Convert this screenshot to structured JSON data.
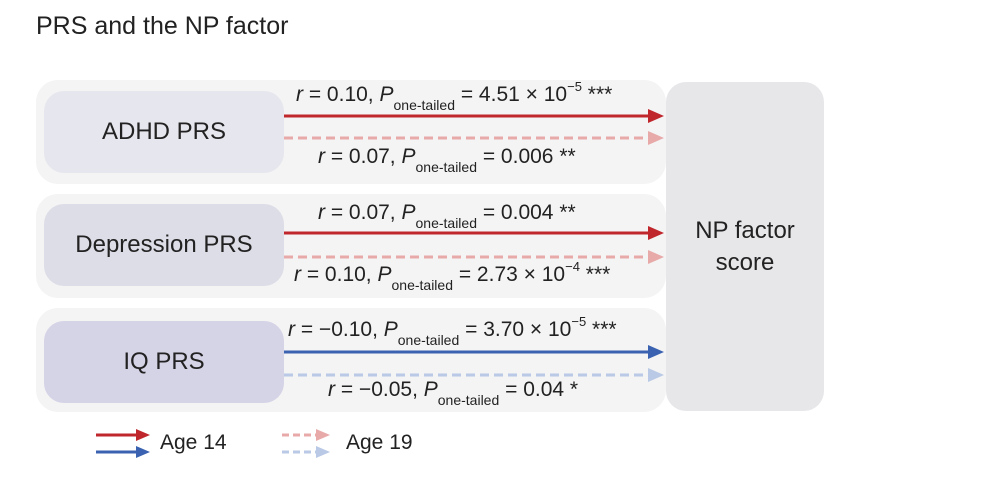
{
  "title": "PRS and the NP factor",
  "outcome": {
    "line1": "NP factor",
    "line2": "score"
  },
  "predictors": [
    {
      "label": "ADHD PRS",
      "age14": {
        "r": "r",
        "r_value": " = 0.10, ",
        "p": "P",
        "p_sub": "one-tailed",
        "p_value": " = 4.51 × 10",
        "p_exp": "−5",
        "stars": " ***"
      },
      "age19": {
        "r": "r",
        "r_value": " = 0.07, ",
        "p": "P",
        "p_sub": "one-tailed",
        "p_value": " = 0.006",
        "p_exp": "",
        "stars": " **"
      }
    },
    {
      "label": "Depression PRS",
      "age14": {
        "r": "r",
        "r_value": " = 0.07, ",
        "p": "P",
        "p_sub": "one-tailed",
        "p_value": " = 0.004",
        "p_exp": "",
        "stars": " **"
      },
      "age19": {
        "r": "r",
        "r_value": " = 0.10, ",
        "p": "P",
        "p_sub": "one-tailed",
        "p_value": " = 2.73 × 10",
        "p_exp": "−4",
        "stars": " ***"
      }
    },
    {
      "label": "IQ PRS",
      "age14": {
        "r": "r",
        "r_value": " = −0.10, ",
        "p": "P",
        "p_sub": "one-tailed",
        "p_value": " = 3.70 × 10",
        "p_exp": "−5",
        "stars": " ***"
      },
      "age19": {
        "r": "r",
        "r_value": " = −0.05, ",
        "p": "P",
        "p_sub": "one-tailed",
        "p_value": " = 0.04",
        "p_exp": "",
        "stars": " *"
      }
    }
  ],
  "legend": {
    "age14": "Age 14",
    "age19": "Age 19"
  },
  "colors": {
    "red": "#c0272d",
    "red_light": "#e8a9a9",
    "blue": "#3a62b0",
    "blue_light": "#b9c9e6",
    "adhd_box": "#e6e6ee",
    "dep_box": "#dddde8",
    "iq_box": "#d5d3e6"
  }
}
